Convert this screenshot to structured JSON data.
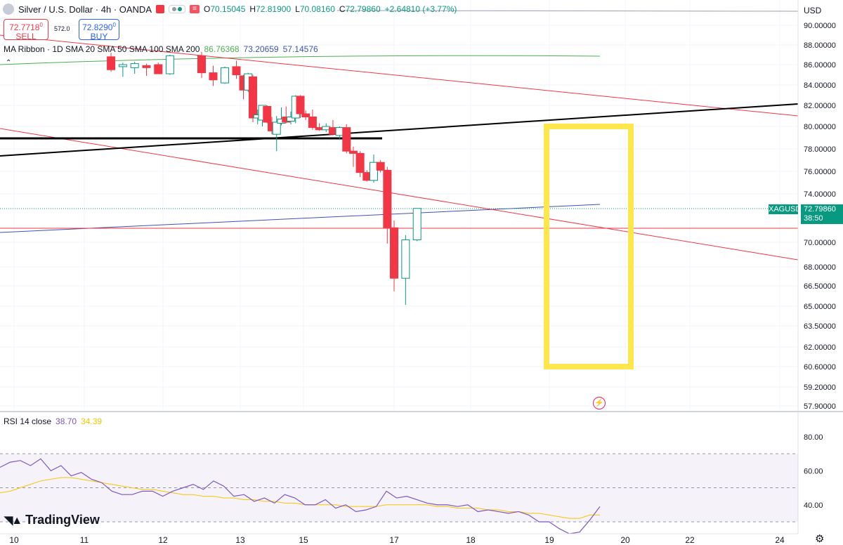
{
  "header": {
    "symbol_title": "Silver / U.S. Dollar · 4h · OANDA",
    "ohlc": {
      "o_label": "O",
      "o": "70.15045",
      "h_label": "H",
      "h": "72.81900",
      "l_label": "L",
      "l": "70.08160",
      "c_label": "C",
      "c": "72.79860",
      "change": "+2.64810 (+3.77%)"
    }
  },
  "trade": {
    "sell_price": "72.7718",
    "sell_sup": "0",
    "sell_label": "SELL",
    "spread": "572.0",
    "buy_price": "72.8290",
    "buy_sup": "0",
    "buy_label": "BUY"
  },
  "ma_ribbon": {
    "label": "MA Ribbon · 1D SMA 20 SMA 50 SMA 100 SMA 200",
    "v1": "86.76368",
    "v2": "73.20659",
    "v3": "57.14576"
  },
  "rsi": {
    "label": "RSI 14 close",
    "v1": "38.70",
    "v2": "34.39"
  },
  "price_axis": {
    "currency": "USD",
    "symbol_tag": "XAGUSD",
    "last_price": "72.79860",
    "countdown": "38:50"
  },
  "logo": {
    "text": "TradingView"
  },
  "colors": {
    "up": "#089981",
    "down": "#f23645",
    "highlight_box": "#fde74c",
    "rsi_line": "#7e57c2",
    "rsi_ma": "#f7c600",
    "ribbon_1": "#4caf50",
    "ribbon_2": "#3f51b5"
  },
  "chart_data": {
    "type": "candlestick",
    "y_ticks": [
      "90.00000",
      "88.00000",
      "86.00000",
      "84.00000",
      "82.00000",
      "80.00000",
      "78.00000",
      "76.00000",
      "74.00000",
      "70.00000",
      "68.00000",
      "66.50000",
      "65.00000",
      "63.50000",
      "62.00000",
      "60.60000",
      "59.20000",
      "57.90000"
    ],
    "y_tick_values": [
      90.0,
      88.0,
      86.0,
      84.0,
      82.0,
      80.0,
      78.0,
      76.0,
      74.0,
      70.0,
      68.0,
      66.5,
      65.0,
      63.5,
      62.0,
      60.6,
      59.2,
      57.9
    ],
    "x_ticks": [
      "10",
      "11",
      "12",
      "13",
      "15",
      "17",
      "18",
      "19",
      "20",
      "22",
      "24"
    ],
    "x_tick_values": [
      10,
      11,
      12,
      13,
      15,
      17,
      18,
      19,
      20,
      22,
      24
    ],
    "candles": [
      {
        "x": 11.34,
        "o": 86.8,
        "h": 87.2,
        "l": 85.3,
        "c": 85.5
      },
      {
        "x": 11.49,
        "o": 85.8,
        "h": 86.2,
        "l": 84.8,
        "c": 86.0
      },
      {
        "x": 11.64,
        "o": 85.7,
        "h": 86.3,
        "l": 85.1,
        "c": 86.1
      },
      {
        "x": 11.79,
        "o": 85.9,
        "h": 86.1,
        "l": 84.9,
        "c": 85.7
      },
      {
        "x": 11.94,
        "o": 86.0,
        "h": 86.2,
        "l": 85.1,
        "c": 85.1
      },
      {
        "x": 12.09,
        "o": 85.1,
        "h": 87.0,
        "l": 85.0,
        "c": 86.9
      },
      {
        "x": 12.5,
        "o": 86.9,
        "h": 87.3,
        "l": 84.7,
        "c": 85.2
      },
      {
        "x": 12.65,
        "o": 85.2,
        "h": 85.9,
        "l": 83.9,
        "c": 84.5
      },
      {
        "x": 12.8,
        "o": 84.2,
        "h": 85.8,
        "l": 84.1,
        "c": 85.7
      },
      {
        "x": 12.95,
        "o": 85.8,
        "h": 86.4,
        "l": 84.6,
        "c": 85.0
      },
      {
        "x": 13.1,
        "o": 84.9,
        "h": 85.0,
        "l": 82.6,
        "c": 83.5
      },
      {
        "x": 13.25,
        "o": 83.5,
        "h": 85.2,
        "l": 83.3,
        "c": 85.1
      },
      {
        "x": 13.4,
        "o": 84.8,
        "h": 85.0,
        "l": 80.4,
        "c": 80.8
      },
      {
        "x": 13.55,
        "o": 80.8,
        "h": 81.6,
        "l": 80.2,
        "c": 81.1
      },
      {
        "x": 13.7,
        "o": 80.6,
        "h": 82.0,
        "l": 80.0,
        "c": 82.0
      },
      {
        "x": 13.85,
        "o": 81.9,
        "h": 82.0,
        "l": 80.3,
        "c": 80.4
      },
      {
        "x": 14.0,
        "o": 80.4,
        "h": 80.9,
        "l": 79.3,
        "c": 79.6
      },
      {
        "x": 14.15,
        "o": 79.3,
        "h": 81.0,
        "l": 77.8,
        "c": 80.4
      },
      {
        "x": 14.3,
        "o": 80.3,
        "h": 81.8,
        "l": 80.1,
        "c": 80.7
      },
      {
        "x": 14.45,
        "o": 80.9,
        "h": 81.9,
        "l": 80.3,
        "c": 80.4
      },
      {
        "x": 14.6,
        "o": 80.5,
        "h": 81.4,
        "l": 80.2,
        "c": 80.9
      },
      {
        "x": 14.75,
        "o": 80.8,
        "h": 83.0,
        "l": 80.3,
        "c": 82.9
      },
      {
        "x": 14.9,
        "o": 82.9,
        "h": 83.0,
        "l": 80.8,
        "c": 81.2
      },
      {
        "x": 15.05,
        "o": 81.2,
        "h": 81.5,
        "l": 80.6,
        "c": 80.9
      },
      {
        "x": 15.2,
        "o": 80.9,
        "h": 81.6,
        "l": 79.7,
        "c": 79.9
      },
      {
        "x": 15.35,
        "o": 79.9,
        "h": 80.3,
        "l": 79.6,
        "c": 79.7
      },
      {
        "x": 15.5,
        "o": 79.7,
        "h": 80.3,
        "l": 79.5,
        "c": 80.0
      },
      {
        "x": 15.65,
        "o": 79.9,
        "h": 80.6,
        "l": 79.2,
        "c": 79.3
      },
      {
        "x": 15.8,
        "o": 79.2,
        "h": 80.0,
        "l": 78.8,
        "c": 79.9
      },
      {
        "x": 15.95,
        "o": 79.9,
        "h": 80.2,
        "l": 77.6,
        "c": 77.8
      },
      {
        "x": 16.1,
        "o": 77.8,
        "h": 78.2,
        "l": 76.4,
        "c": 77.6
      },
      {
        "x": 16.25,
        "o": 77.6,
        "h": 77.8,
        "l": 75.5,
        "c": 75.9
      },
      {
        "x": 16.4,
        "o": 75.9,
        "h": 76.1,
        "l": 75.1,
        "c": 75.2
      },
      {
        "x": 16.55,
        "o": 75.2,
        "h": 77.5,
        "l": 75.0,
        "c": 76.8
      },
      {
        "x": 16.7,
        "o": 76.8,
        "h": 77.0,
        "l": 75.9,
        "c": 76.1
      },
      {
        "x": 16.85,
        "o": 76.1,
        "h": 76.4,
        "l": 69.9,
        "c": 71.2
      },
      {
        "x": 17.0,
        "o": 71.2,
        "h": 71.8,
        "l": 66.1,
        "c": 67.1
      },
      {
        "x": 17.15,
        "o": 67.1,
        "h": 70.6,
        "l": 65.1,
        "c": 70.2
      },
      {
        "x": 17.3,
        "o": 70.2,
        "h": 72.8,
        "l": 70.1,
        "c": 72.8
      }
    ],
    "rsi_ticks": [
      "80.00",
      "60.00",
      "40.00"
    ],
    "rsi_tick_values": [
      80,
      60,
      40
    ],
    "rsi": [
      62,
      65,
      66,
      63,
      67,
      60,
      63,
      57,
      59,
      55,
      53,
      48,
      46,
      46,
      48,
      48,
      45,
      48,
      50,
      52,
      49,
      54,
      51,
      45,
      46,
      42,
      44,
      41,
      46,
      44,
      40,
      40,
      43,
      38,
      40,
      36,
      37,
      39,
      48,
      44,
      45,
      43,
      41,
      40,
      40,
      39,
      40,
      36,
      37,
      36,
      35,
      36,
      34,
      30,
      30,
      26,
      23,
      24,
      31,
      39
    ],
    "rsi_ma": [
      47,
      48,
      50,
      52,
      54,
      55,
      56,
      56,
      55,
      54,
      53,
      52,
      51,
      50,
      49,
      49,
      48,
      47,
      46,
      46,
      45,
      45,
      44,
      44,
      43,
      43,
      42,
      42,
      41,
      41,
      40,
      40,
      40,
      40,
      39,
      39,
      39,
      39,
      40,
      40,
      40,
      40,
      40,
      39,
      39,
      38,
      38,
      38,
      37,
      37,
      36,
      36,
      35,
      35,
      34,
      33,
      32,
      32,
      34,
      34
    ]
  }
}
